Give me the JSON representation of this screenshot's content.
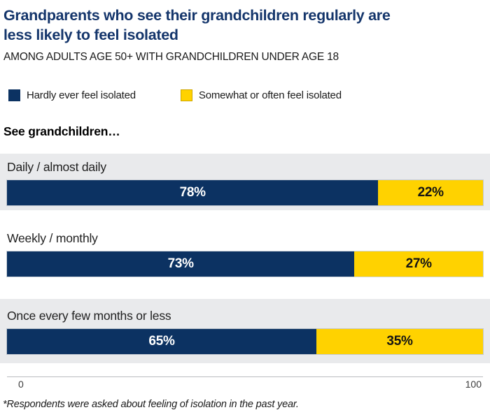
{
  "title_lines": [
    "Grandparents who see their grandchildren regularly are",
    "less likely to feel isolated"
  ],
  "subtitle": "AMONG ADULTS AGE 50+ WITH GRANDCHILDREN UNDER AGE 18",
  "legend": [
    {
      "label": "Hardly ever feel isolated",
      "color": "#0c3262"
    },
    {
      "label": "Somewhat or often feel isolated",
      "color": "#ffd200"
    }
  ],
  "section_label": "See grandchildren…",
  "chart_data": {
    "type": "bar",
    "orientation": "horizontal-stacked",
    "title": "Grandparents who see their grandchildren regularly are less likely to feel isolated",
    "subtitle": "Among adults age 50+ with grandchildren under age 18",
    "categories": [
      "Daily / almost daily",
      "Weekly / monthly",
      "Once every few months or less"
    ],
    "series": [
      {
        "name": "Hardly ever feel isolated",
        "color": "#0c3262",
        "values": [
          78,
          73,
          65
        ],
        "labels": [
          "78%",
          "73%",
          "65%"
        ]
      },
      {
        "name": "Somewhat or often feel isolated",
        "color": "#ffd200",
        "values": [
          22,
          27,
          35
        ],
        "labels": [
          "22%",
          "27%",
          "35%"
        ]
      }
    ],
    "xlim": [
      0,
      100
    ],
    "x_ticks": [
      "0",
      "100"
    ],
    "legend_position": "top",
    "grid": false
  },
  "axis": {
    "min_label": "0",
    "max_label": "100"
  },
  "footnote": "*Respondents were asked about feeling of isolation in the past year.",
  "colors": {
    "title_navy": "#14356b",
    "bar_navy": "#0c3262",
    "bar_yellow": "#ffd200",
    "band_gray": "#e9eaec",
    "axis_line": "#b9bcbf"
  }
}
